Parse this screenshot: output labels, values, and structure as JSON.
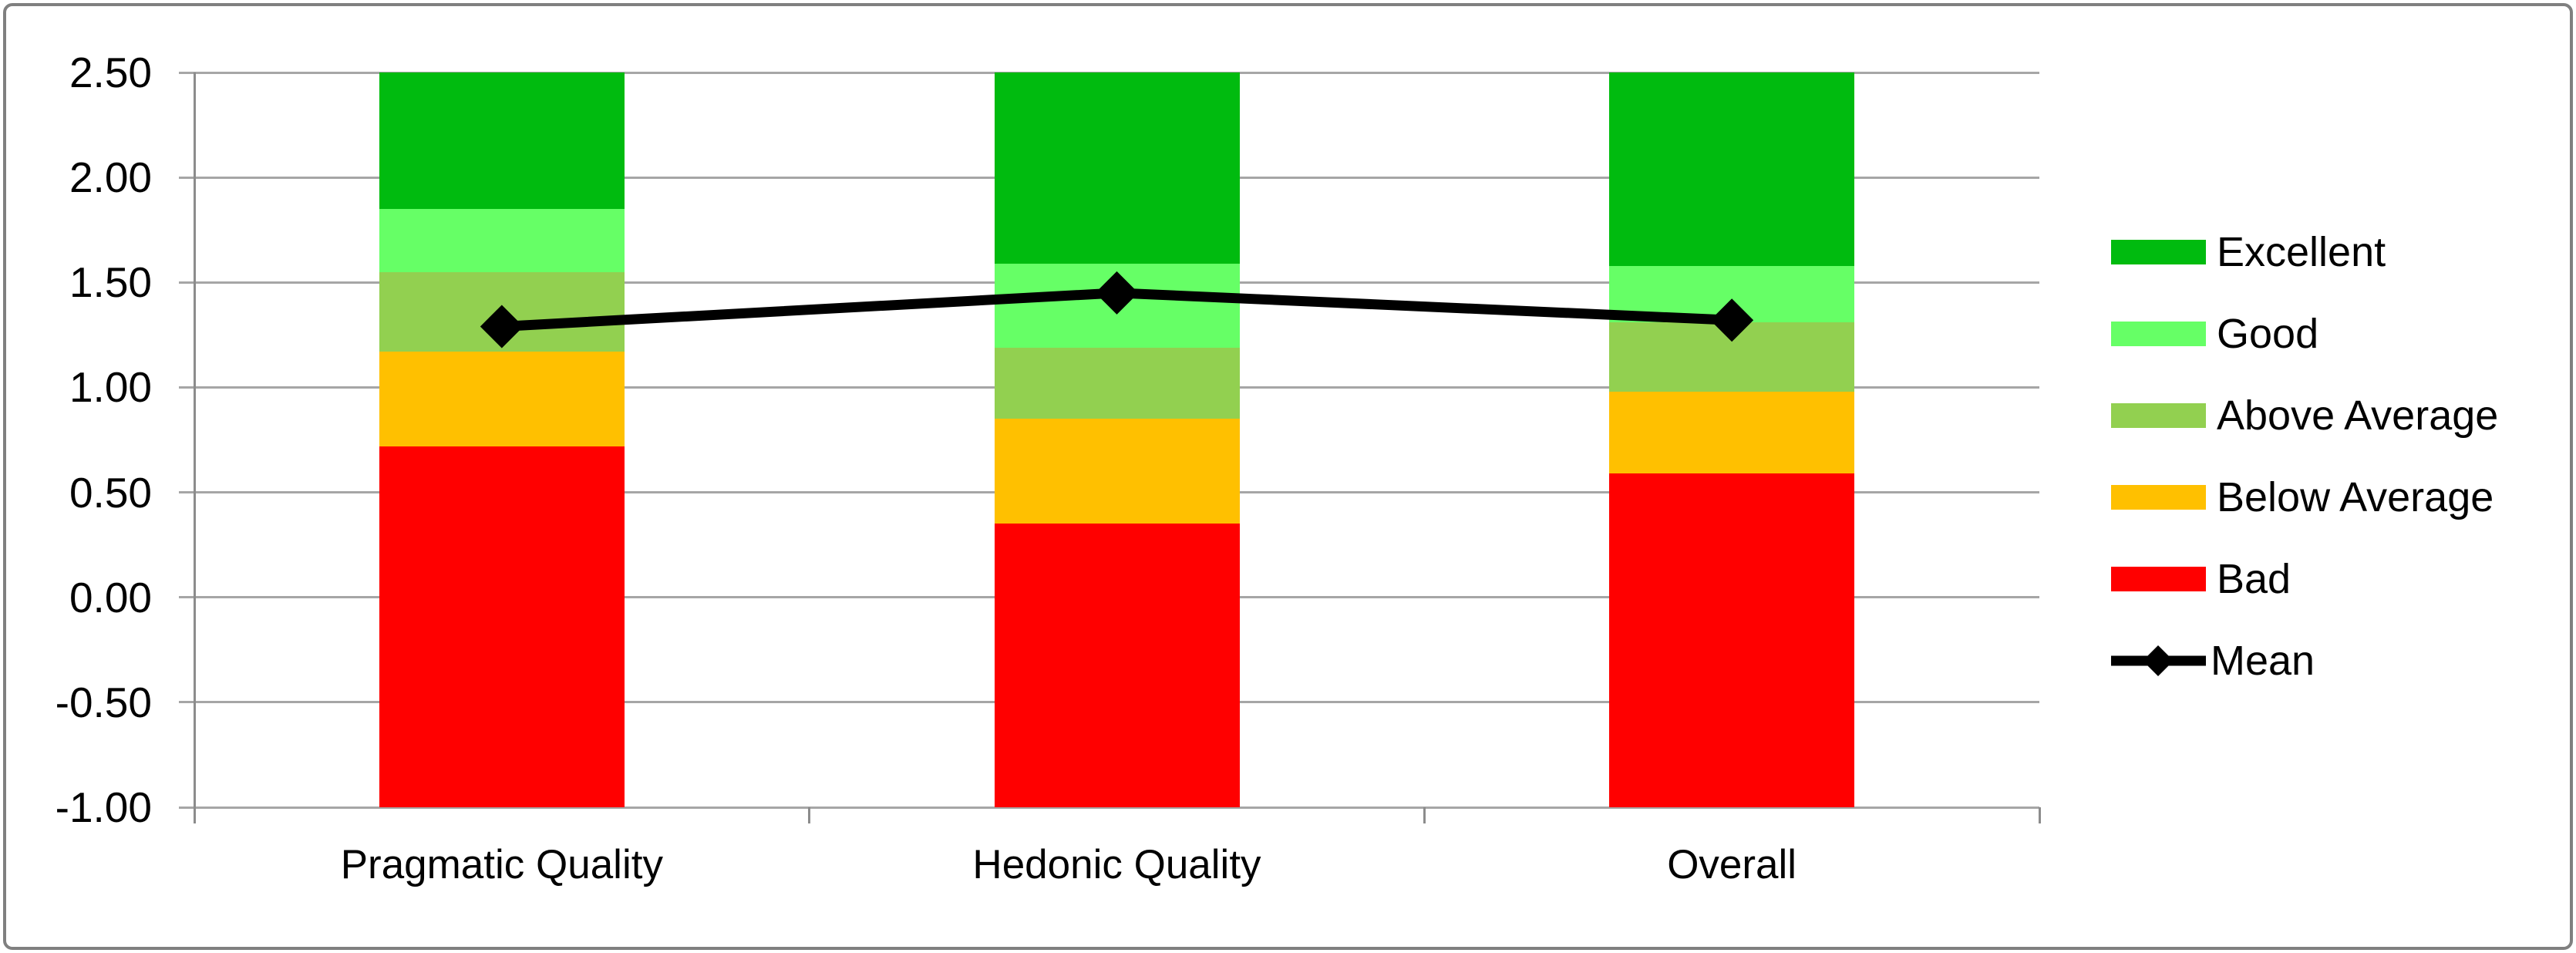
{
  "chart_data": {
    "type": "bar",
    "subtype": "stacked-bar-with-mean-line",
    "categories": [
      "Pragmatic Quality",
      "Hedonic Quality",
      "Overall"
    ],
    "ylim": [
      -1.0,
      2.5
    ],
    "ytick_step": 0.5,
    "ytick_labels": [
      "2.50",
      "2.00",
      "1.50",
      "1.00",
      "0.50",
      "0.00",
      "-0.50",
      "-1.00"
    ],
    "grid": true,
    "legend_position": "right",
    "series": [
      {
        "name": "Bad",
        "color": "#ff0000",
        "tops": [
          0.72,
          0.35,
          0.59
        ]
      },
      {
        "name": "Below Average",
        "color": "#ffc000",
        "tops": [
          1.17,
          0.85,
          0.98
        ]
      },
      {
        "name": "Above Average",
        "color": "#92d050",
        "tops": [
          1.55,
          1.19,
          1.31
        ]
      },
      {
        "name": "Good",
        "color": "#66ff66",
        "tops": [
          1.85,
          1.59,
          1.58
        ]
      },
      {
        "name": "Excellent",
        "color": "#00bb0f",
        "tops": [
          2.5,
          2.5,
          2.5
        ]
      }
    ],
    "stack_base": -1.0,
    "mean_series": {
      "name": "Mean",
      "color": "#000000",
      "values": [
        1.29,
        1.45,
        1.32
      ],
      "marker": "diamond"
    },
    "legend": [
      "Excellent",
      "Good",
      "Above Average",
      "Below Average",
      "Bad",
      "Mean"
    ],
    "colors": {
      "gridline": "#a6a6a6",
      "axis": "#8c8c8c",
      "frame_border": "#808080",
      "background": "#ffffff",
      "text": "#000000"
    }
  }
}
